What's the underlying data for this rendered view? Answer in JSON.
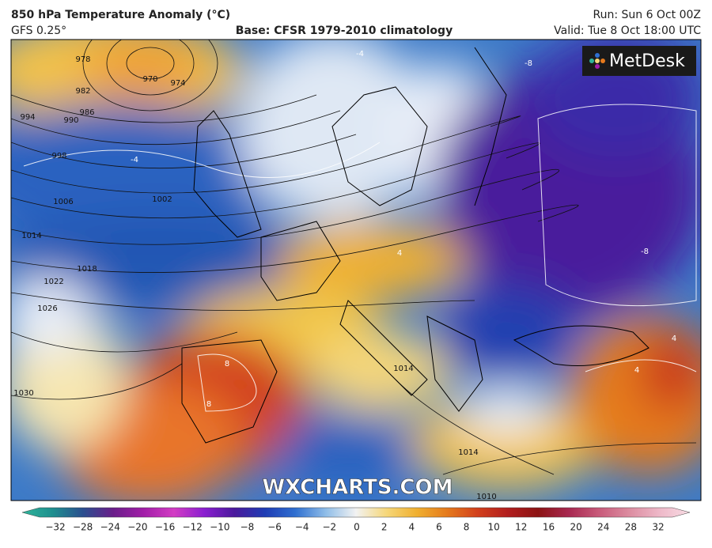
{
  "header": {
    "title": "850 hPa Temperature Anomaly (°C)",
    "model": "GFS 0.25°",
    "base": "Base: CFSR 1979-2010 climatology",
    "run": "Run: Sun 6 Oct 00Z",
    "valid": "Valid: Tue 8 Oct 18:00 UTC"
  },
  "logo": "MetDesk",
  "watermark": "WXCHARTS.COM",
  "isobar_labels": [
    "978",
    "970",
    "974",
    "982",
    "986",
    "990",
    "994",
    "998",
    "1002",
    "1006",
    "1014",
    "1018",
    "1022",
    "1026",
    "1030",
    "1014",
    "1014",
    "1010"
  ],
  "anomaly_labels": [
    "-4",
    "-4",
    "-8",
    "-8",
    "4",
    "8",
    "8",
    "4",
    "4"
  ],
  "colorbar": {
    "labels": [
      "−32",
      "−28",
      "−24",
      "−20",
      "−16",
      "−12",
      "−10",
      "−8",
      "−6",
      "−4",
      "−2",
      "0",
      "2",
      "4",
      "6",
      "8",
      "10",
      "12",
      "16",
      "20",
      "24",
      "28",
      "32"
    ],
    "colors": [
      "#2fb59a",
      "#1e8f8f",
      "#2a4f8f",
      "#6a1e8a",
      "#a21ea8",
      "#d33cc4",
      "#8a1ed0",
      "#4a1a9c",
      "#1e3cb4",
      "#2f6fd0",
      "#8fbde8",
      "#f2f2f2",
      "#f6d77a",
      "#f0b030",
      "#e57a1c",
      "#d2401c",
      "#b21e1e",
      "#8c1414",
      "#a82850",
      "#c85a7a",
      "#dc8ca0",
      "#eeb8c8",
      "#f8dce4"
    ]
  }
}
